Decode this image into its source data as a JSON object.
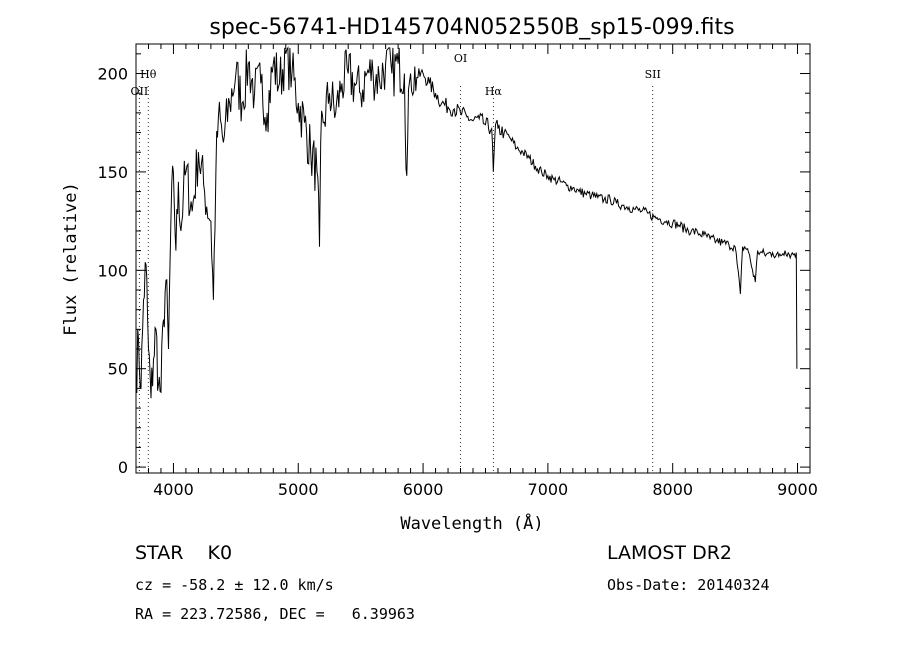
{
  "chart_data": {
    "type": "line",
    "title": "spec-56741-HD145704N052550B_sp15-099.fits",
    "xlabel": "Wavelength (Å)",
    "ylabel": "Flux (relative)",
    "xlim": [
      3700,
      9100
    ],
    "ylim": [
      -3,
      215
    ],
    "x_ticks": [
      4000,
      5000,
      6000,
      7000,
      8000,
      9000
    ],
    "y_ticks": [
      0,
      50,
      100,
      150,
      200
    ],
    "grid": false,
    "series": [
      {
        "x": [
          3700,
          3720,
          3740,
          3760,
          3780,
          3800,
          3820,
          3840,
          3860,
          3880,
          3900,
          3920,
          3940,
          3960,
          3980,
          4000,
          4020,
          4040,
          4060,
          4080,
          4100,
          4150,
          4200,
          4250,
          4300,
          4320,
          4340,
          4360,
          4400,
          4450,
          4500,
          4550,
          4600,
          4650,
          4700,
          4750,
          4800,
          4850,
          4900,
          4950,
          5000,
          5050,
          5100,
          5150,
          5170,
          5180,
          5200,
          5250,
          5300,
          5350,
          5400,
          5450,
          5500,
          5550,
          5600,
          5650,
          5700,
          5750,
          5800,
          5850,
          5870,
          5890,
          5900,
          5950,
          6000,
          6050,
          6100,
          6150,
          6200,
          6250,
          6300,
          6350,
          6400,
          6450,
          6500,
          6550,
          6563,
          6580,
          6600,
          6650,
          6700,
          6750,
          6800,
          6850,
          6900,
          6950,
          7000,
          7050,
          7100,
          7150,
          7200,
          7250,
          7300,
          7350,
          7400,
          7450,
          7500,
          7550,
          7600,
          7650,
          7700,
          7750,
          7800,
          7850,
          7900,
          7950,
          8000,
          8050,
          8100,
          8150,
          8200,
          8250,
          8300,
          8350,
          8400,
          8450,
          8500,
          8542,
          8560,
          8600,
          8662,
          8680,
          8700,
          8750,
          8800,
          8850,
          8900,
          8950,
          8990,
          8995
        ],
        "y": [
          45,
          65,
          40,
          85,
          103,
          60,
          35,
          55,
          70,
          42,
          38,
          75,
          95,
          60,
          125,
          150,
          110,
          145,
          120,
          140,
          150,
          130,
          160,
          140,
          125,
          85,
          150,
          178,
          165,
          185,
          200,
          185,
          205,
          190,
          195,
          180,
          205,
          195,
          210,
          200,
          185,
          175,
          160,
          150,
          112,
          165,
          175,
          190,
          180,
          195,
          200,
          195,
          190,
          200,
          200,
          197,
          205,
          200,
          205,
          200,
          148,
          195,
          200,
          198,
          200,
          195,
          190,
          185,
          183,
          182,
          180,
          178,
          176,
          177,
          174,
          172,
          150,
          174,
          172,
          170,
          167,
          162,
          160,
          157,
          153,
          150,
          148,
          146,
          145,
          143,
          142,
          140,
          139,
          138,
          137,
          136,
          136,
          134,
          133,
          132,
          131,
          130,
          129,
          127,
          126,
          125,
          124,
          123,
          121,
          120,
          119,
          118,
          116,
          115,
          114,
          113,
          112,
          88,
          112,
          111,
          94,
          110,
          109,
          108,
          109,
          107,
          110,
          108,
          109,
          50
        ]
      }
    ],
    "spectral_lines": [
      {
        "label": "Hθ",
        "x": 3798
      },
      {
        "label": "OII",
        "x": 3727
      },
      {
        "label": "OI",
        "x": 6300
      },
      {
        "label": "Hα",
        "x": 6563
      },
      {
        "label": "SII",
        "x": 7840
      }
    ]
  },
  "info": {
    "class": "STAR    K0",
    "survey": "LAMOST DR2",
    "cz": "cz = -58.2 ± 12.0 km/s",
    "obs_date": "Obs-Date: 20140324",
    "coords": "RA = 223.72586, DEC =   6.39963"
  }
}
